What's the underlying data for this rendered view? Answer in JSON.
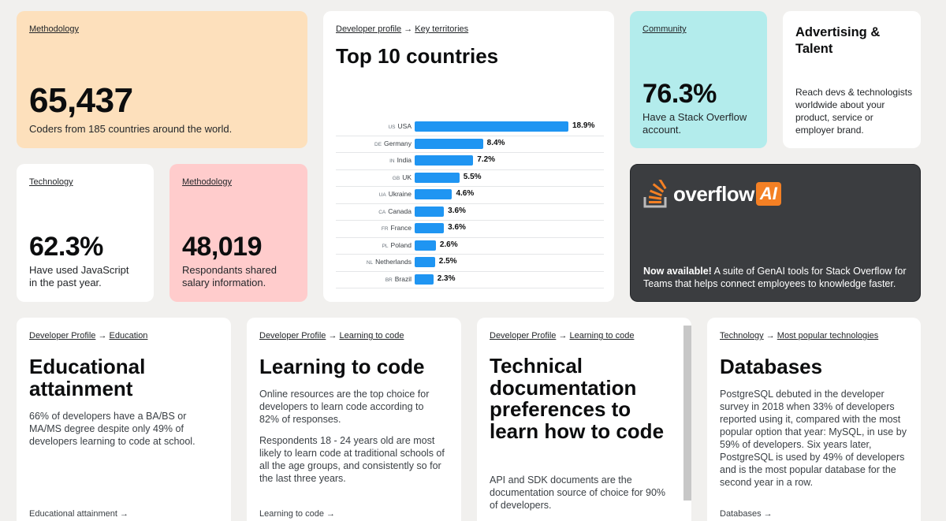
{
  "card1": {
    "crumb": "Methodology",
    "number": "65,437",
    "text": "Coders from 185 countries around the world."
  },
  "card2": {
    "crumb_a": "Developer profile",
    "arrow": "→",
    "crumb_b": "Key territories",
    "title": "Top 10 countries",
    "chart_data": {
      "type": "bar",
      "categories": [
        "USA",
        "Germany",
        "India",
        "UK",
        "Ukraine",
        "Canada",
        "France",
        "Poland",
        "Netherlands",
        "Brazil"
      ],
      "codes": [
        "US",
        "DE",
        "IN",
        "GB",
        "UA",
        "CA",
        "FR",
        "PL",
        "NL",
        "BR"
      ],
      "values": [
        18.9,
        8.4,
        7.2,
        5.5,
        4.6,
        3.6,
        3.6,
        2.6,
        2.5,
        2.3
      ],
      "labels": [
        "18.9%",
        "8.4%",
        "7.2%",
        "5.5%",
        "4.6%",
        "3.6%",
        "3.6%",
        "2.6%",
        "2.5%",
        "2.3%"
      ],
      "bar_color": "#1f95f2"
    }
  },
  "card3": {
    "crumb": "Community",
    "number": "76.3%",
    "text": "Have a Stack Overflow account."
  },
  "card4": {
    "title": "Advertising & Talent",
    "text": "Reach devs & technologists worldwide about your product, service or employer brand."
  },
  "card5": {
    "crumb": "Technology",
    "number": "62.3%",
    "text": "Have used JavaScript in the past year."
  },
  "card6": {
    "crumb": "Methodology",
    "number": "48,019",
    "text": "Respondants shared salary information."
  },
  "card7": {
    "logo_word": "overflow",
    "logo_badge": "AI",
    "lead": "Now available!",
    "text": " A suite of GenAI tools for Stack Overflow for Teams that helps connect employees to knowledge faster."
  },
  "card8": {
    "crumb_a": "Developer Profile",
    "arrow": "→",
    "crumb_b": "Education",
    "title": "Educational attainment",
    "p1": "66% of developers have a BA/BS or MA/MS degree despite only 49% of developers learning to code at school.",
    "foot": "Educational attainment →"
  },
  "card9": {
    "crumb_a": "Developer Profile",
    "arrow": "→",
    "crumb_b": "Learning to code",
    "title": "Learning to code",
    "p1": "Online resources are the top choice for developers to learn code according to 82% of responses.",
    "p2": "Respondents 18 - 24 years old are most likely to learn code at traditional schools of all the age groups, and consistently so for the last three years.",
    "foot": "Learning to code →"
  },
  "card10": {
    "crumb_a": "Developer Profile",
    "arrow": "→",
    "crumb_b": "Learning to code",
    "title": "Technical documentation preferences to learn how to code",
    "p1": "API and SDK documents are the documentation source of choice for 90% of developers."
  },
  "card11": {
    "crumb_a": "Technology",
    "arrow": "→",
    "crumb_b": "Most popular technologies",
    "title": "Databases",
    "p1": "PostgreSQL debuted in the developer survey in 2018 when 33% of developers reported using it, compared with the most popular option that year: MySQL, in use by 59% of developers. Six years later, PostgreSQL is used by 49% of developers and is the most popular database for the second year in a row.",
    "foot": "Databases →"
  },
  "colors": {
    "peach": "#fde0bc",
    "pink": "#ffcccc",
    "aqua": "#b3ecec",
    "dark": "#3b3d40",
    "orange": "#f48024"
  }
}
